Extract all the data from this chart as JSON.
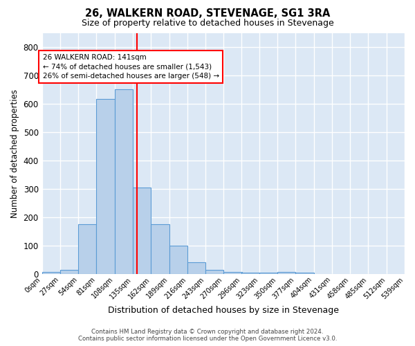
{
  "title": "26, WALKERN ROAD, STEVENAGE, SG1 3RA",
  "subtitle": "Size of property relative to detached houses in Stevenage",
  "xlabel": "Distribution of detached houses by size in Stevenage",
  "ylabel": "Number of detached properties",
  "bar_color": "#b8d0ea",
  "bar_edge_color": "#5b9bd5",
  "bg_color": "#dce8f5",
  "grid_color": "#ffffff",
  "red_line_x": 141,
  "annotation_text": "26 WALKERN ROAD: 141sqm\n← 74% of detached houses are smaller (1,543)\n26% of semi-detached houses are larger (548) →",
  "footnote1": "Contains HM Land Registry data © Crown copyright and database right 2024.",
  "footnote2": "Contains public sector information licensed under the Open Government Licence v3.0.",
  "bin_edges": [
    0,
    27,
    54,
    81,
    108,
    135,
    162,
    189,
    216,
    243,
    270,
    296,
    323,
    350,
    377,
    404,
    431,
    458,
    485,
    512,
    539
  ],
  "bin_counts": [
    7,
    14,
    175,
    617,
    650,
    305,
    175,
    100,
    42,
    15,
    8,
    4,
    5,
    7,
    5,
    0,
    0,
    0,
    0,
    0
  ],
  "tick_labels": [
    "0sqm",
    "27sqm",
    "54sqm",
    "81sqm",
    "108sqm",
    "135sqm",
    "162sqm",
    "189sqm",
    "216sqm",
    "243sqm",
    "270sqm",
    "296sqm",
    "323sqm",
    "350sqm",
    "377sqm",
    "404sqm",
    "431sqm",
    "458sqm",
    "485sqm",
    "512sqm",
    "539sqm"
  ],
  "ylim": [
    0,
    850
  ],
  "yticks": [
    0,
    100,
    200,
    300,
    400,
    500,
    600,
    700,
    800
  ]
}
